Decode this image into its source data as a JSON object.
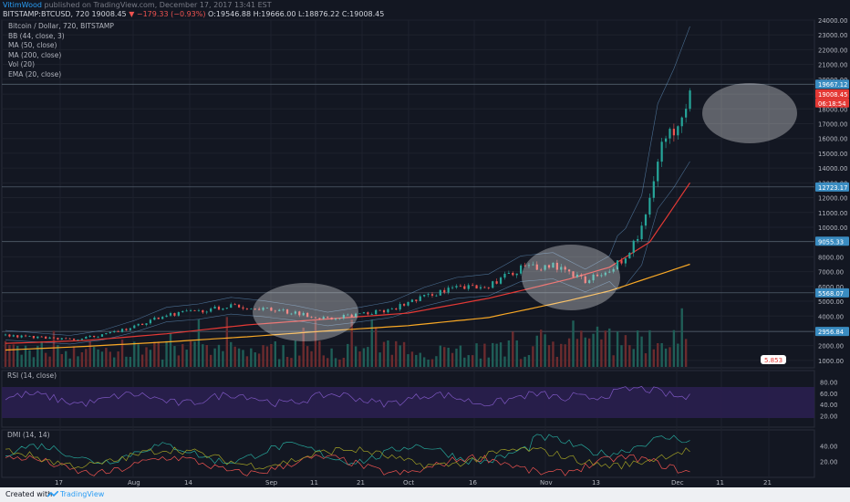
{
  "header": {
    "author": "VitimWood",
    "published_text": "published on TradingView.com, December 17, 2017 13:41 EST",
    "symbol": "BITSTAMP:BTCUSD, 720",
    "last": "19008.45",
    "change": "▼ −179.33 (−0.93%)",
    "ohlc": "O:19546.88 H:19666.00 L:18876.22 C:19008.45"
  },
  "legend": {
    "title": "Bitcoin / Dollar, 720, BITSTAMP",
    "indicators": [
      "BB (44, close, 3)",
      "MA (50, close)",
      "MA (200, close)",
      "Vol (20)",
      "EMA (20, close)"
    ]
  },
  "rsi_label": "RSI (14, close)",
  "dmi_label": "DMI (14, 14)",
  "footer": {
    "created_with": "Created with",
    "brand": "TradingView"
  },
  "colors": {
    "bg": "#131722",
    "up": "#26a69a",
    "down": "#ef5350",
    "ma50": "#e53935",
    "ma200": "#f9a825",
    "bb": "#6fa8dc",
    "rsi_band": "#2a1f4f"
  },
  "chart_data": {
    "type": "line",
    "title": "Bitcoin / Dollar, 720, BITSTAMP",
    "x_ticks": [
      "17",
      "Aug",
      "14",
      "Sep",
      "11",
      "21",
      "Oct",
      "16",
      "Nov",
      "13",
      "Dec",
      "11",
      "21"
    ],
    "price_ticks": [
      1000,
      2000,
      3000,
      4000,
      5000,
      6000,
      7000,
      8000,
      9000,
      10000,
      11000,
      12000,
      13000,
      14000,
      15000,
      16000,
      17000,
      18000,
      19000,
      20000,
      21000,
      22000,
      23000,
      24000
    ],
    "ylim": [
      500,
      24000
    ],
    "price_labels": [
      "19667.12",
      "19008.45",
      "06:18:54",
      "12723.17",
      "9055.33",
      "5568.07",
      "2956.84"
    ],
    "volume_badge": "5.853",
    "rsi_ticks": [
      20,
      40,
      60,
      80
    ],
    "dmi_ticks": [
      20,
      40
    ],
    "series": [
      {
        "name": "BTCUSD",
        "x": [
          0,
          8,
          16,
          24,
          32,
          40,
          48,
          56,
          64,
          72,
          80,
          88,
          96,
          104,
          112,
          120,
          128,
          136,
          144,
          150,
          154,
          158,
          162,
          166,
          170
        ],
        "values": [
          2700,
          2550,
          2400,
          2700,
          3300,
          4100,
          4300,
          4700,
          4500,
          4200,
          3800,
          4100,
          4450,
          5300,
          5900,
          6100,
          7200,
          7400,
          6400,
          7200,
          8000,
          9800,
          14800,
          16700,
          19008
        ]
      },
      {
        "name": "MA (50, close)",
        "x": [
          0,
          20,
          40,
          60,
          80,
          100,
          120,
          140,
          150,
          160,
          170
        ],
        "values": [
          2150,
          2350,
          2800,
          3400,
          3800,
          4200,
          5200,
          6500,
          7300,
          9000,
          13000
        ]
      },
      {
        "name": "MA (200, close)",
        "x": [
          0,
          20,
          40,
          60,
          80,
          100,
          120,
          140,
          150,
          160,
          170
        ],
        "values": [
          1700,
          1950,
          2250,
          2600,
          3000,
          3350,
          3900,
          5050,
          5700,
          6600,
          7500
        ]
      }
    ]
  }
}
